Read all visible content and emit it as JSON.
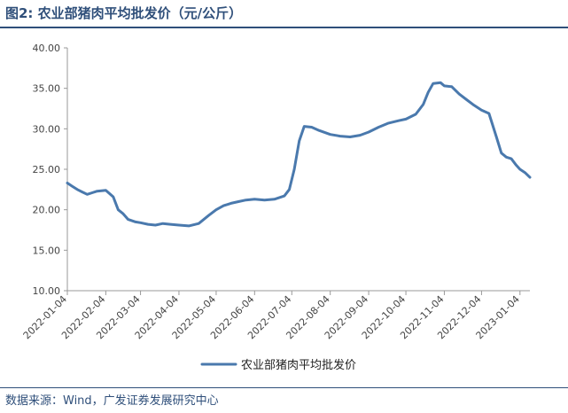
{
  "header": {
    "title": "图2:  农业部猪肉平均批发价（元/公斤）"
  },
  "footer": {
    "source": "数据来源：Wind，广发证券发展研究中心"
  },
  "colors": {
    "series": "#4a79ad",
    "axis": "#999999",
    "text": "#2f4f7a"
  },
  "chart_data": {
    "type": "line",
    "title": "",
    "xlabel": "",
    "ylabel": "",
    "ylim": [
      10,
      40
    ],
    "yticks": [
      "10.00",
      "15.00",
      "20.00",
      "25.00",
      "30.00",
      "35.00",
      "40.00"
    ],
    "xticks": [
      "2022-01-04",
      "2022-02-04",
      "2022-03-04",
      "2022-04-04",
      "2022-05-04",
      "2022-06-04",
      "2022-07-04",
      "2022-08-04",
      "2022-09-04",
      "2022-10-04",
      "2022-11-04",
      "2022-12-04",
      "2023-01-04"
    ],
    "grid": false,
    "legend": "bottom",
    "series": [
      {
        "name": "农业部猪肉平均批发价",
        "x": [
          "2022-01-04",
          "2022-01-08",
          "2022-01-12",
          "2022-01-16",
          "2022-01-20",
          "2022-01-24",
          "2022-01-28",
          "2022-02-04",
          "2022-02-10",
          "2022-02-14",
          "2022-02-18",
          "2022-02-22",
          "2022-02-28",
          "2022-03-04",
          "2022-03-10",
          "2022-03-16",
          "2022-03-22",
          "2022-03-28",
          "2022-04-04",
          "2022-04-12",
          "2022-04-20",
          "2022-04-28",
          "2022-05-04",
          "2022-05-10",
          "2022-05-16",
          "2022-05-22",
          "2022-05-28",
          "2022-06-04",
          "2022-06-12",
          "2022-06-20",
          "2022-06-28",
          "2022-07-02",
          "2022-07-06",
          "2022-07-10",
          "2022-07-14",
          "2022-07-20",
          "2022-07-26",
          "2022-08-04",
          "2022-08-12",
          "2022-08-20",
          "2022-08-28",
          "2022-09-04",
          "2022-09-12",
          "2022-09-20",
          "2022-09-28",
          "2022-10-04",
          "2022-10-12",
          "2022-10-18",
          "2022-10-22",
          "2022-10-26",
          "2022-11-01",
          "2022-11-04",
          "2022-11-10",
          "2022-11-16",
          "2022-11-22",
          "2022-11-28",
          "2022-12-04",
          "2022-12-10",
          "2022-12-16",
          "2022-12-20",
          "2022-12-24",
          "2022-12-28",
          "2023-01-01",
          "2023-01-04",
          "2023-01-08",
          "2023-01-12"
        ],
        "values": [
          23.3,
          22.9,
          22.5,
          22.2,
          21.9,
          22.1,
          22.3,
          22.4,
          21.6,
          20.0,
          19.5,
          18.8,
          18.5,
          18.4,
          18.2,
          18.1,
          18.3,
          18.2,
          18.1,
          18.0,
          18.3,
          19.3,
          20.0,
          20.5,
          20.8,
          21.0,
          21.2,
          21.3,
          21.2,
          21.3,
          21.7,
          22.5,
          25.0,
          28.5,
          30.3,
          30.2,
          29.8,
          29.3,
          29.1,
          29.0,
          29.2,
          29.6,
          30.2,
          30.7,
          31.0,
          31.2,
          31.8,
          33.0,
          34.5,
          35.6,
          35.7,
          35.3,
          35.2,
          34.3,
          33.6,
          32.9,
          32.3,
          31.9,
          29.0,
          27.0,
          26.5,
          26.3,
          25.5,
          25.0,
          24.6,
          24.0
        ]
      }
    ]
  }
}
